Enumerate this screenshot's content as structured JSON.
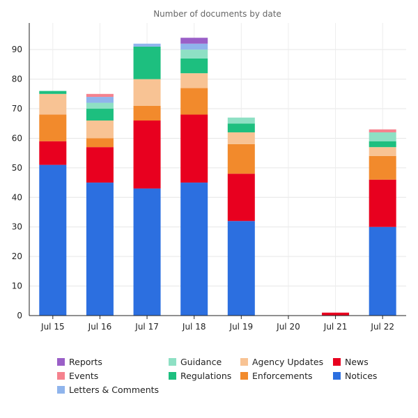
{
  "chart_data": {
    "type": "bar",
    "stacked": true,
    "title": "Number of documents by date",
    "xlabel": "",
    "ylabel": "",
    "categories": [
      "Jul 15",
      "Jul 16",
      "Jul 17",
      "Jul 18",
      "Jul 19",
      "Jul 20",
      "Jul 21",
      "Jul 22"
    ],
    "ylim": [
      0,
      99
    ],
    "yticks": [
      0,
      10,
      20,
      30,
      40,
      50,
      60,
      70,
      80,
      90
    ],
    "grid": true,
    "legend_position": "bottom",
    "series": [
      {
        "name": "Notices",
        "color": "#2c6fe0",
        "values": [
          51,
          45,
          43,
          45,
          32,
          0,
          0,
          30
        ]
      },
      {
        "name": "News",
        "color": "#e8001f",
        "values": [
          8,
          12,
          23,
          23,
          16,
          0,
          1,
          16
        ]
      },
      {
        "name": "Enforcements",
        "color": "#f28a2c",
        "values": [
          9,
          3,
          5,
          9,
          10,
          0,
          0,
          8
        ]
      },
      {
        "name": "Agency Updates",
        "color": "#f8c394",
        "values": [
          7,
          6,
          9,
          5,
          4,
          0,
          0,
          3
        ]
      },
      {
        "name": "Regulations",
        "color": "#1dbf7f",
        "values": [
          1,
          4,
          11,
          5,
          3,
          0,
          0,
          2
        ]
      },
      {
        "name": "Guidance",
        "color": "#8ee0c4",
        "values": [
          0,
          2,
          0,
          3,
          2,
          0,
          0,
          3
        ]
      },
      {
        "name": "Letters & Comments",
        "color": "#8fb4ec",
        "values": [
          0,
          2,
          1,
          2,
          0,
          0,
          0,
          0
        ]
      },
      {
        "name": "Events",
        "color": "#f5828e",
        "values": [
          0,
          1,
          0,
          0,
          0,
          0,
          0,
          1
        ]
      },
      {
        "name": "Reports",
        "color": "#9a5fc7",
        "values": [
          0,
          0,
          0,
          2,
          0,
          0,
          0,
          0
        ]
      }
    ],
    "legend_order": [
      "Reports",
      "Guidance",
      "Agency Updates",
      "News",
      "Events",
      "Regulations",
      "Enforcements",
      "Notices",
      "Letters & Comments"
    ]
  }
}
